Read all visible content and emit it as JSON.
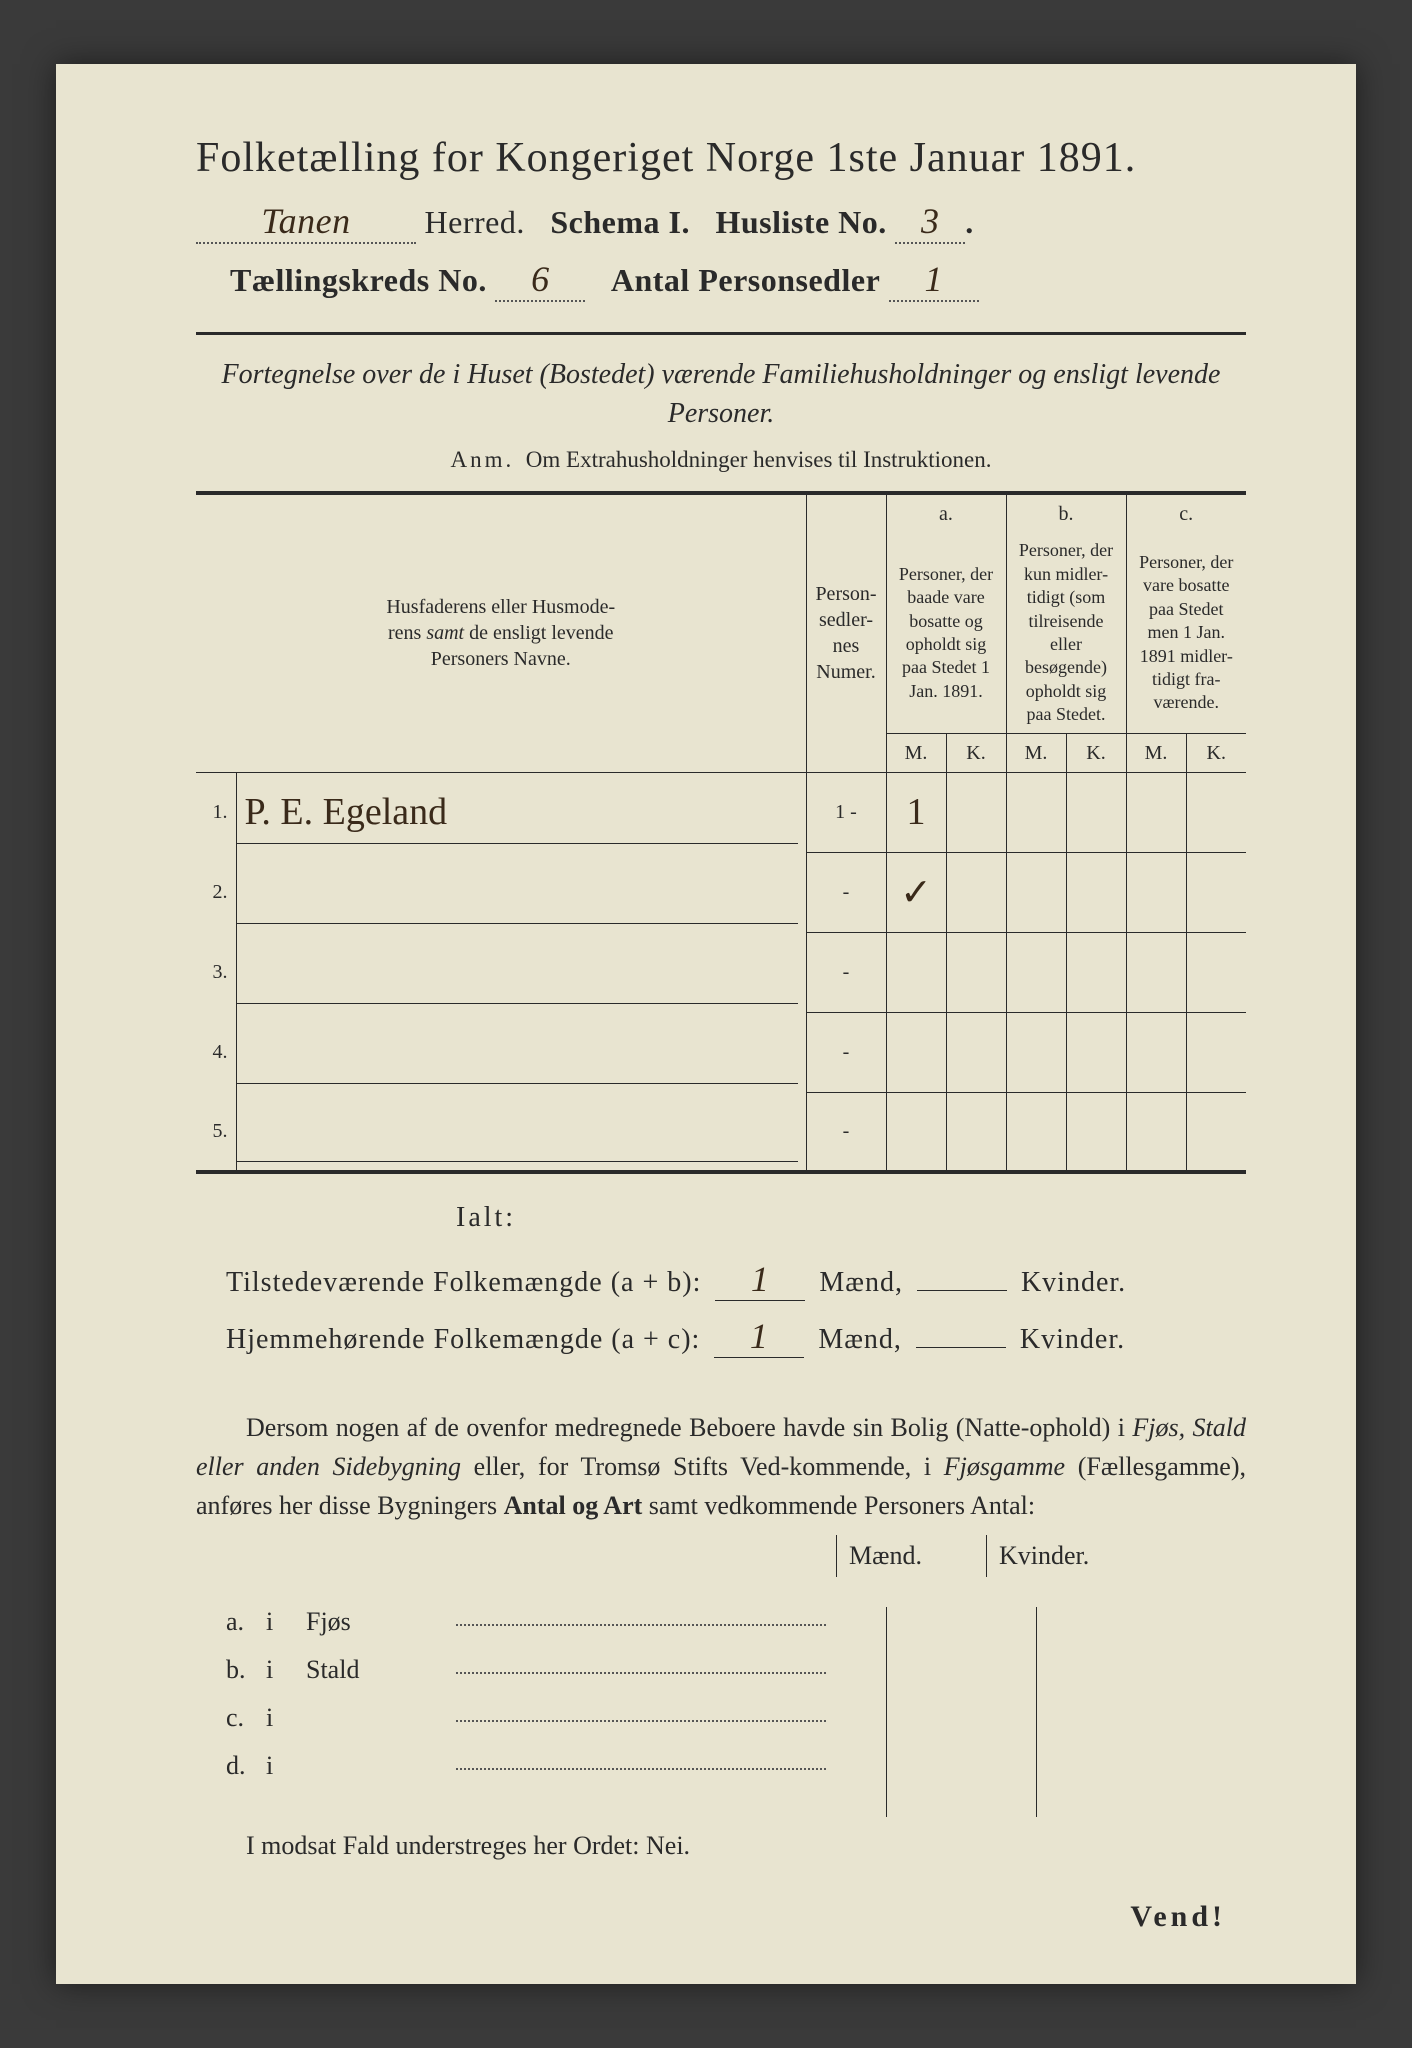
{
  "header": {
    "title": "Folketælling for Kongeriget Norge 1ste Januar 1891.",
    "herred_value": "Tanen",
    "herred_label": "Herred.",
    "schema_label": "Schema I.",
    "husliste_label": "Husliste No.",
    "husliste_value": "3",
    "taellingskreds_label": "Tællingskreds No.",
    "taellingskreds_value": "6",
    "antal_label": "Antal Personsedler",
    "antal_value": "1"
  },
  "subtitle": "Fortegnelse over de i Huset (Bostedet) værende Familiehusholdninger og ensligt levende Personer.",
  "anm_label": "Anm.",
  "anm_text": "Om Extrahusholdninger henvises til Instruktionen.",
  "table": {
    "col1": "Husfaderens eller Husmoderens samt de ensligt levende Personers Navne.",
    "col1_samt": "samt",
    "col2": "Person-sedler-nes Numer.",
    "col_a_label": "a.",
    "col_a": "Personer, der baade vare bosatte og opholdt sig paa Stedet 1 Jan. 1891.",
    "col_b_label": "b.",
    "col_b": "Personer, der kun midler-tidigt (som tilreisende eller besøgende) opholdt sig paa Stedet.",
    "col_c_label": "c.",
    "col_c": "Personer, der vare bosatte paa Stedet men 1 Jan. 1891 midler-tidigt fra-værende.",
    "M": "M.",
    "K": "K.",
    "rows": [
      {
        "n": "1.",
        "name": "P. E. Egeland",
        "num": "1 -",
        "a_m": "1",
        "a_k": "",
        "b_m": "",
        "b_k": "",
        "c_m": "",
        "c_k": ""
      },
      {
        "n": "2.",
        "name": "",
        "num": "-",
        "a_m": "✓",
        "a_k": "",
        "b_m": "",
        "b_k": "",
        "c_m": "",
        "c_k": ""
      },
      {
        "n": "3.",
        "name": "",
        "num": "-",
        "a_m": "",
        "a_k": "",
        "b_m": "",
        "b_k": "",
        "c_m": "",
        "c_k": ""
      },
      {
        "n": "4.",
        "name": "",
        "num": "-",
        "a_m": "",
        "a_k": "",
        "b_m": "",
        "b_k": "",
        "c_m": "",
        "c_k": ""
      },
      {
        "n": "5.",
        "name": "",
        "num": "-",
        "a_m": "",
        "a_k": "",
        "b_m": "",
        "b_k": "",
        "c_m": "",
        "c_k": ""
      }
    ]
  },
  "ialt": "Ialt:",
  "totals": {
    "line1_label": "Tilstedeværende Folkemængde (a + b):",
    "line2_label": "Hjemmehørende Folkemængde (a + c):",
    "maend": "Mænd,",
    "kvinder": "Kvinder.",
    "val1_m": "1",
    "val1_k": "",
    "val2_m": "1",
    "val2_k": ""
  },
  "para": "Dersom nogen af de ovenfor medregnede Beboere havde sin Bolig (Natteophold) i Fjøs, Stald eller anden Sidebygning eller, for Tromsø Stifts Vedkommende, i Fjøsgamme (Fællesgamme), anføres her disse Bygningers Antal og Art samt vedkommende Personers Antal:",
  "mk": {
    "m": "Mænd.",
    "k": "Kvinder."
  },
  "buildings": [
    {
      "l": "a.",
      "i": "i",
      "name": "Fjøs"
    },
    {
      "l": "b.",
      "i": "i",
      "name": "Stald"
    },
    {
      "l": "c.",
      "i": "i",
      "name": ""
    },
    {
      "l": "d.",
      "i": "i",
      "name": ""
    }
  ],
  "footer": "I modsat Fald understreges her Ordet: Nei.",
  "vend": "Vend!",
  "colors": {
    "page_bg": "#e8e4d0",
    "text": "#2a2a2a",
    "handwriting": "#3a2a1a",
    "outer_bg": "#3a3a3a"
  }
}
